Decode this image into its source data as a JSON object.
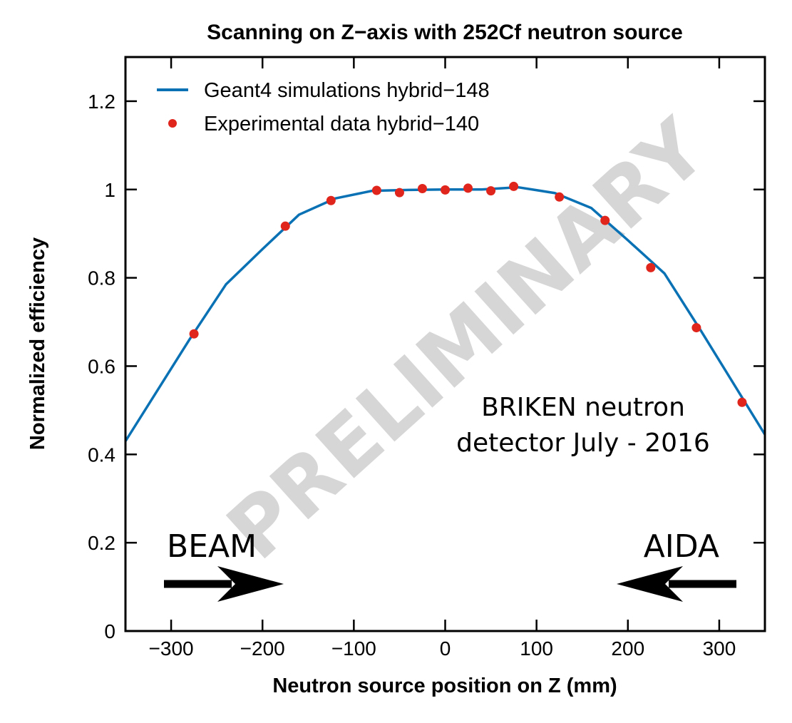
{
  "chart_data": {
    "type": "line",
    "title": "Scanning on Z−axis with 252Cf neutron source",
    "xlabel": "Neutron source position on Z (mm)",
    "ylabel": "Normalized efficiency",
    "xlim": [
      -350,
      350
    ],
    "ylim": [
      0,
      1.3
    ],
    "xticks": [
      -300,
      -200,
      -100,
      0,
      100,
      200,
      300
    ],
    "xtick_labels": [
      "−300",
      "−200",
      "−100",
      "0",
      "100",
      "200",
      "300"
    ],
    "yticks": [
      0,
      0.2,
      0.4,
      0.6,
      0.8,
      1,
      1.2
    ],
    "ytick_labels": [
      "0",
      "0.2",
      "0.4",
      "0.6",
      "0.8",
      "1",
      "1.2"
    ],
    "grid": false,
    "legend_position": "top-left",
    "series": [
      {
        "name": "Geant4 simulations hybrid−148",
        "kind": "line",
        "color": "#0a72b4",
        "x": [
          -350,
          -280,
          -240,
          -200,
          -160,
          -120,
          -80,
          -40,
          0,
          40,
          80,
          120,
          160,
          200,
          240,
          280,
          350
        ],
        "y": [
          0.43,
          0.66,
          0.785,
          0.865,
          0.943,
          0.98,
          0.997,
          0.999,
          1.0,
          1.0,
          1.005,
          0.992,
          0.958,
          0.885,
          0.81,
          0.68,
          0.445
        ]
      },
      {
        "name": "Experimental data hybrid−140",
        "kind": "scatter",
        "color": "#e0251d",
        "x": [
          -275,
          -175,
          -125,
          -75,
          -50,
          -25,
          0,
          25,
          50,
          75,
          125,
          175,
          225,
          275,
          325
        ],
        "y": [
          0.673,
          0.917,
          0.975,
          0.998,
          0.993,
          1.002,
          0.999,
          1.003,
          0.997,
          1.007,
          0.983,
          0.93,
          0.823,
          0.687,
          0.518
        ]
      }
    ],
    "annotations": {
      "detector_line1": "BRIKEN neutron",
      "detector_line2": "detector July - 2016",
      "beam": "BEAM",
      "aida": "AIDA",
      "watermark": "PRELIMINARY"
    }
  }
}
